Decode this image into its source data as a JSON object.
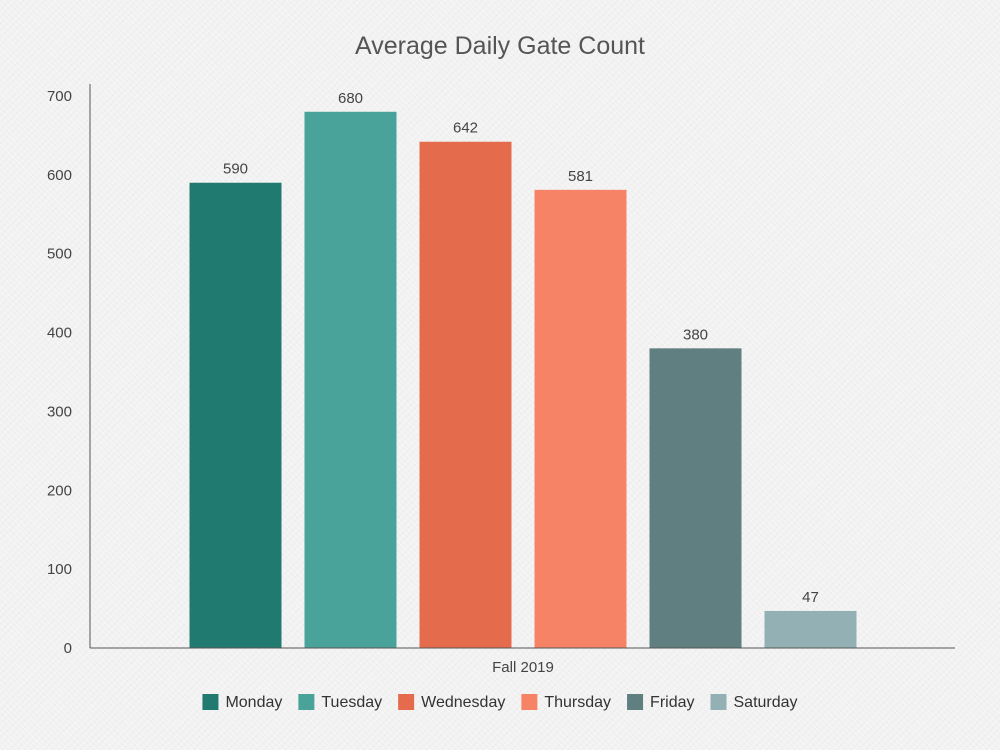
{
  "chart_data": {
    "type": "bar",
    "title": "Average Daily Gate Count",
    "categories": [
      "Fall 2019"
    ],
    "series": [
      {
        "name": "Monday",
        "values": [
          590
        ],
        "color": "#217a70"
      },
      {
        "name": "Tuesday",
        "values": [
          680
        ],
        "color": "#4aa39a"
      },
      {
        "name": "Wednesday",
        "values": [
          642
        ],
        "color": "#e56b4d"
      },
      {
        "name": "Thursday",
        "values": [
          581
        ],
        "color": "#f78366"
      },
      {
        "name": "Friday",
        "values": [
          380
        ],
        "color": "#5f7f80"
      },
      {
        "name": "Saturday",
        "values": [
          47
        ],
        "color": "#93b1b4"
      }
    ],
    "ylim": [
      0,
      700
    ],
    "yticks": [
      0,
      100,
      200,
      300,
      400,
      500,
      600,
      700
    ],
    "xlabel": "",
    "ylabel": "",
    "grid": false,
    "legend_position": "bottom"
  }
}
